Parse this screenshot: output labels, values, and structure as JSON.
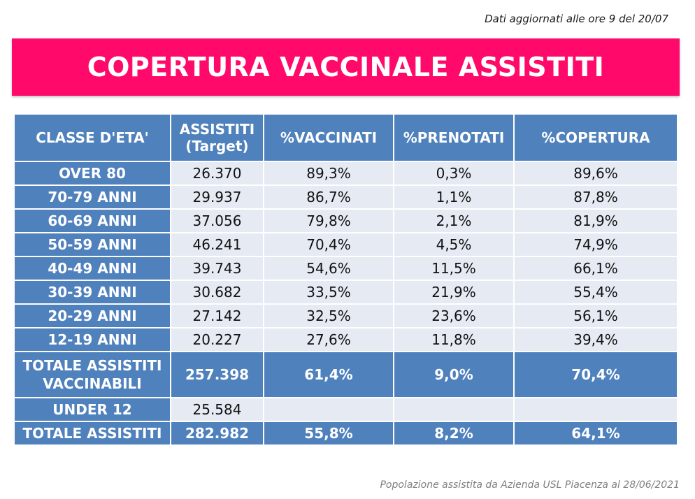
{
  "updated_note": "Dati aggiornati alle ore 9 del 20/07",
  "title": "COPERTURA VACCINALE ASSISTITI",
  "header": {
    "age_class": "CLASSE D'ETA'",
    "assistiti_line1": "ASSISTITI",
    "assistiti_line2": "(Target)",
    "vaccinati": "%VACCINATI",
    "prenotati": "%PRENOTATI",
    "copertura": "%COPERTURA"
  },
  "rows": [
    {
      "age": "OVER 80",
      "assistiti": "26.370",
      "vaccinati": "89,3%",
      "prenotati": "0,3%",
      "copertura": "89,6%"
    },
    {
      "age": "70-79 ANNI",
      "assistiti": "29.937",
      "vaccinati": "86,7%",
      "prenotati": "1,1%",
      "copertura": "87,8%"
    },
    {
      "age": "60-69 ANNI",
      "assistiti": "37.056",
      "vaccinati": "79,8%",
      "prenotati": "2,1%",
      "copertura": "81,9%"
    },
    {
      "age": "50-59 ANNI",
      "assistiti": "46.241",
      "vaccinati": "70,4%",
      "prenotati": "4,5%",
      "copertura": "74,9%"
    },
    {
      "age": "40-49 ANNI",
      "assistiti": "39.743",
      "vaccinati": "54,6%",
      "prenotati": "11,5%",
      "copertura": "66,1%"
    },
    {
      "age": "30-39 ANNI",
      "assistiti": "30.682",
      "vaccinati": "33,5%",
      "prenotati": "21,9%",
      "copertura": "55,4%"
    },
    {
      "age": "20-29 ANNI",
      "assistiti": "27.142",
      "vaccinati": "32,5%",
      "prenotati": "23,6%",
      "copertura": "56,1%"
    },
    {
      "age": "12-19 ANNI",
      "assistiti": "20.227",
      "vaccinati": "27,6%",
      "prenotati": "11,8%",
      "copertura": "39,4%"
    }
  ],
  "total_vaccinabili": {
    "label_line1": "TOTALE ASSISTITI",
    "label_line2": "VACCINABILI",
    "assistiti": "257.398",
    "vaccinati": "61,4%",
    "prenotati": "9,0%",
    "copertura": "70,4%"
  },
  "under12": {
    "age": "UNDER 12",
    "assistiti": "25.584",
    "vaccinati": "",
    "prenotati": "",
    "copertura": ""
  },
  "total_assistiti": {
    "label": "TOTALE ASSISTITI",
    "assistiti": "282.982",
    "vaccinati": "55,8%",
    "prenotati": "8,2%",
    "copertura": "64,1%"
  },
  "footnote": "Popolazione assistita da Azienda USL Piacenza al 28/06/2021",
  "colors": {
    "banner": "#ff0a6a",
    "header": "#4f81bd",
    "cell": "#e6ebf3"
  }
}
